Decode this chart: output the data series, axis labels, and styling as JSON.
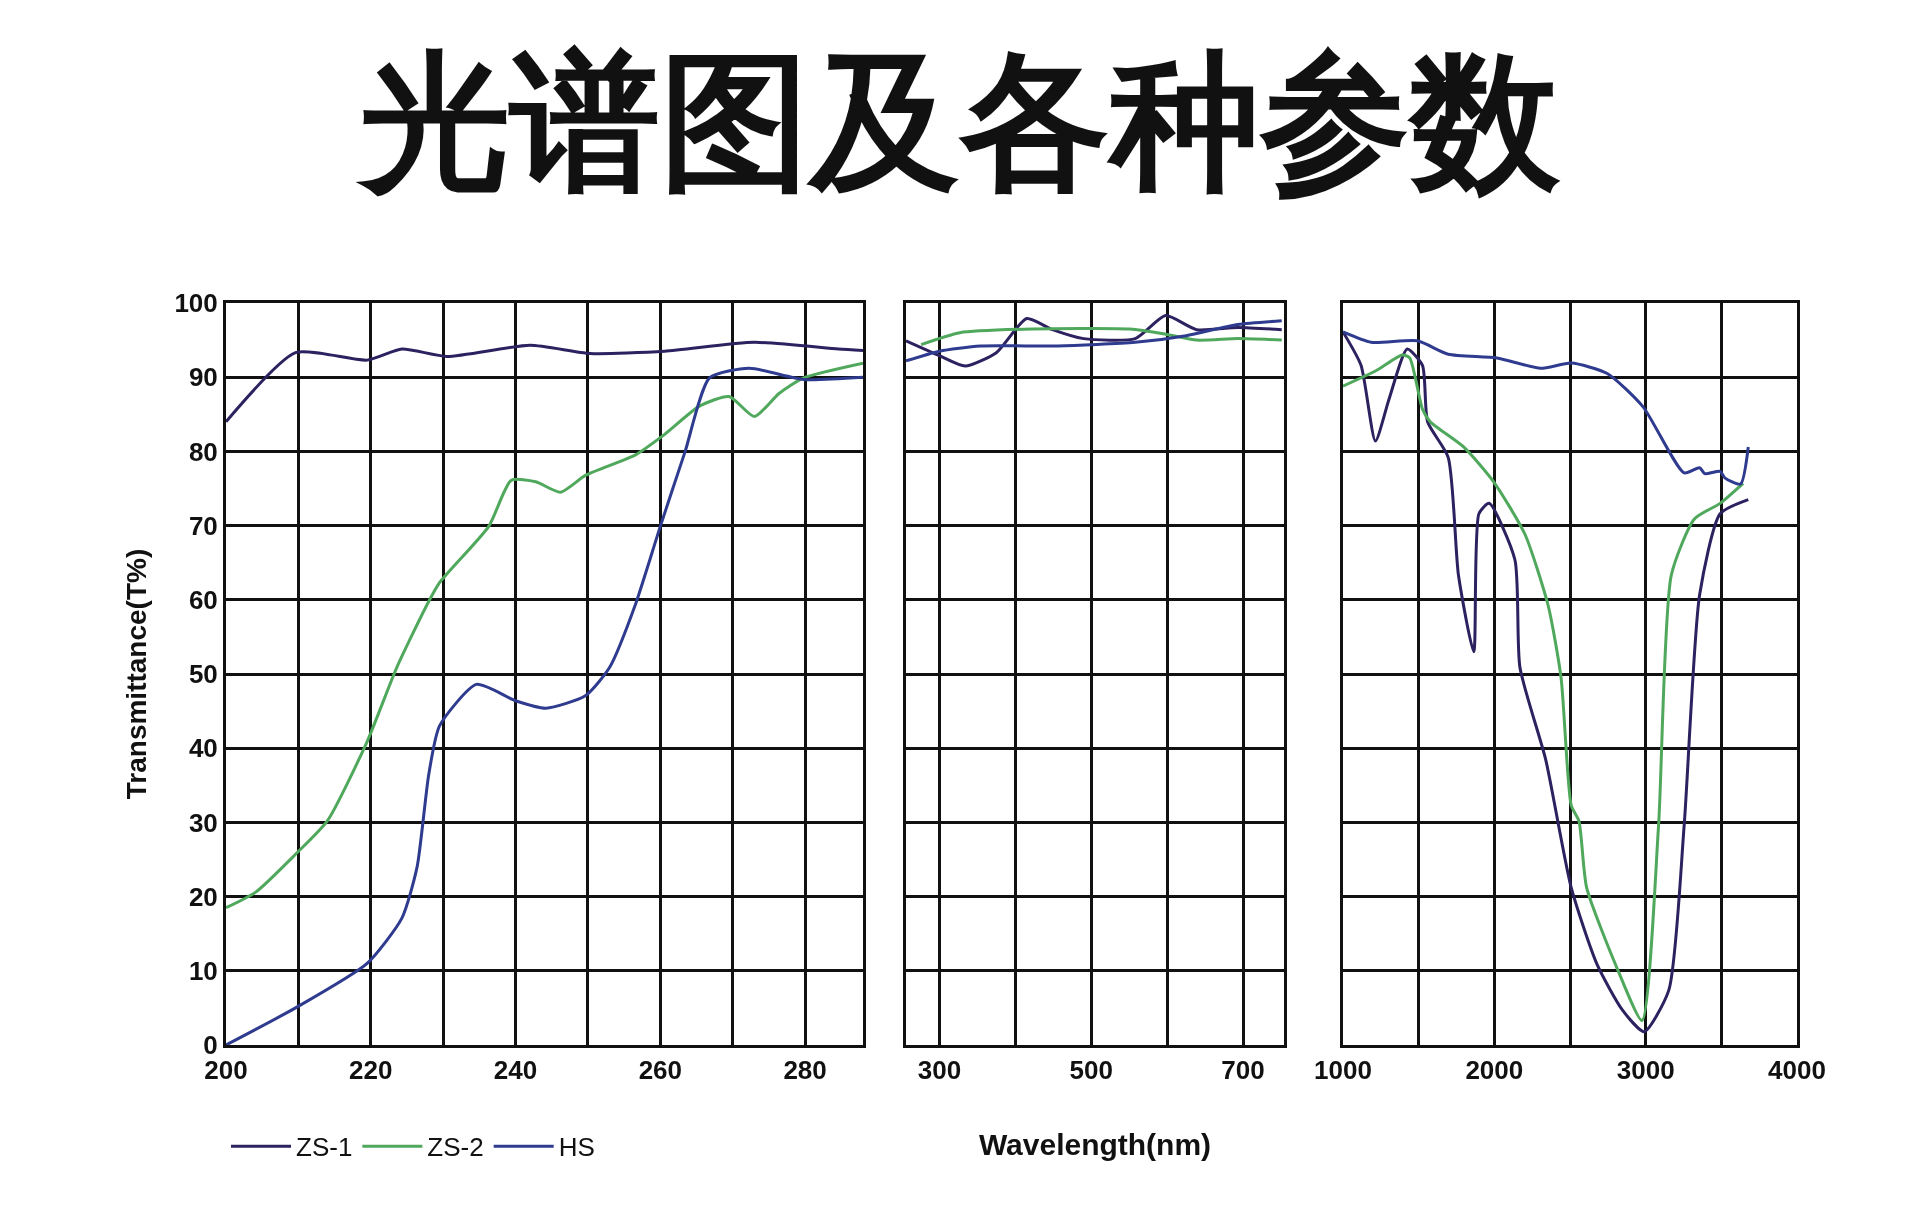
{
  "chart_data": [
    {
      "type": "line",
      "title": "光谱图及各种参数",
      "ylabel": "Transmittance(T%)",
      "legend": "bottom",
      "grid": true,
      "xlim": [
        200,
        288
      ],
      "xticks": [
        200,
        {
          "value": 210,
          "label": null
        },
        220,
        {
          "value": 230,
          "label": null
        },
        240,
        {
          "value": 250,
          "label": null
        },
        260,
        {
          "value": 270,
          "label": null
        },
        280
      ],
      "ylim": [
        0,
        100
      ],
      "yticks": [
        0,
        10,
        20,
        30,
        40,
        50,
        60,
        70,
        80,
        90,
        100
      ],
      "series": [
        {
          "name": "ZS-1",
          "color": "#2d2160",
          "x": [
            200,
            209.6,
            219.5,
            224.3,
            230.5,
            242,
            250.3,
            260.6,
            273,
            284.6,
            288
          ],
          "values": [
            84,
            93.3,
            92.3,
            93.8,
            92.8,
            94.3,
            93.2,
            93.5,
            94.7,
            93.8,
            93.6
          ]
        },
        {
          "name": "ZS-2",
          "color": "#4fa85c",
          "x": [
            200,
            204.1,
            209.6,
            214,
            219.5,
            223.6,
            227.7,
            229.5,
            236.3,
            239.4,
            242.8,
            246.2,
            249.7,
            256.5,
            260.6,
            265.4,
            269.5,
            273,
            276.4,
            279.8,
            288
          ],
          "values": [
            18.5,
            20.6,
            25.7,
            30.2,
            40.9,
            50.9,
            59.2,
            62.3,
            69.9,
            76.1,
            75.9,
            74.5,
            76.8,
            79.5,
            82.3,
            86.1,
            87.4,
            84.7,
            87.8,
            89.9,
            91.9
          ]
        },
        {
          "name": "HS",
          "color": "#2e3b8f",
          "x": [
            200,
            209.6,
            219.5,
            224.3,
            226.4,
            228,
            229.5,
            234.6,
            240,
            244.2,
            249.7,
            253,
            256.5,
            260,
            263.4,
            266.8,
            272.3,
            279.8,
            288
          ],
          "values": [
            0,
            5,
            11,
            17.1,
            24,
            36.4,
            43,
            48.6,
            46.4,
            45.4,
            47.1,
            50.9,
            59.2,
            69.9,
            79.9,
            89.9,
            91.2,
            89.7,
            90
          ]
        }
      ]
    },
    {
      "type": "line",
      "xlabel": "Wavelength(nm)",
      "grid": true,
      "tick_labels": "x",
      "xlim": [
        256,
        754
      ],
      "xticks": [
        300,
        {
          "value": 400,
          "label": null
        },
        500,
        {
          "value": 600,
          "label": null
        },
        700
      ],
      "ylim": [
        0,
        100
      ],
      "yticks": [
        {
          "value": 0,
          "label": null
        },
        {
          "value": 10,
          "label": null
        },
        {
          "value": 20,
          "label": null
        },
        {
          "value": 30,
          "label": null
        },
        {
          "value": 40,
          "label": null
        },
        {
          "value": 50,
          "label": null
        },
        {
          "value": 60,
          "label": null
        },
        {
          "value": 70,
          "label": null
        },
        {
          "value": 80,
          "label": null
        },
        {
          "value": 90,
          "label": null
        },
        {
          "value": 100,
          "label": null
        }
      ],
      "series": [
        {
          "color": "#2d2160",
          "x": [
            256,
            300,
            334,
            375,
            415,
            449,
            490,
            558,
            598,
            639,
            693,
            751
          ],
          "values": [
            94.9,
            92.9,
            91.5,
            93.3,
            97.9,
            96.4,
            95.2,
            95.2,
            98.3,
            96.4,
            96.7,
            96.4
          ]
        },
        {
          "color": "#4fa85c",
          "x": [
            276,
            327,
            422,
            551,
            598,
            639,
            693,
            751
          ],
          "values": [
            94.4,
            96,
            96.5,
            96.5,
            95.8,
            95,
            95.2,
            95
          ]
        },
        {
          "color": "#2e3b8f",
          "x": [
            256,
            300,
            354,
            456,
            558,
            625,
            693,
            751
          ],
          "values": [
            92.2,
            93.5,
            94.2,
            94.2,
            94.7,
            95.6,
            97.1,
            97.6
          ]
        }
      ]
    },
    {
      "type": "line",
      "grid": true,
      "tick_labels": "x",
      "xlim": [
        1000,
        4000
      ],
      "xticks": [
        1000,
        {
          "value": 1500,
          "label": null
        },
        2000,
        {
          "value": 2500,
          "label": null
        },
        3000,
        {
          "value": 3500,
          "label": null
        },
        4000
      ],
      "ylim": [
        0,
        100
      ],
      "yticks": [
        {
          "value": 0,
          "label": null
        },
        {
          "value": 10,
          "label": null
        },
        {
          "value": 20,
          "label": null
        },
        {
          "value": 30,
          "label": null
        },
        {
          "value": 40,
          "label": null
        },
        {
          "value": 50,
          "label": null
        },
        {
          "value": 60,
          "label": null
        },
        {
          "value": 70,
          "label": null
        },
        {
          "value": 80,
          "label": null
        },
        {
          "value": 90,
          "label": null
        },
        {
          "value": 100,
          "label": null
        }
      ],
      "series": [
        {
          "color": "#2d2160",
          "x": [
            1000,
            1119,
            1214,
            1305,
            1424,
            1525,
            1559,
            1695,
            1763,
            1864,
            1898,
            1966,
            2136,
            2169,
            2339,
            2508,
            2678,
            2847,
            2990,
            3153,
            3254,
            3356,
            3492,
            3678
          ],
          "values": [
            96.1,
            91.6,
            81.4,
            87.1,
            93.8,
            91.6,
            84,
            79.2,
            63.3,
            53,
            71.6,
            73,
            65.4,
            50.9,
            38.5,
            21.2,
            10.9,
            4.7,
            1.8,
            7.4,
            29.5,
            60.6,
            71.6,
            73.5
          ]
        },
        {
          "color": "#4fa85c",
          "x": [
            1000,
            1220,
            1390,
            1441,
            1525,
            1576,
            1797,
            1999,
            2203,
            2356,
            2441,
            2508,
            2559,
            2610,
            2814,
            2976,
            3085,
            3169,
            3322,
            3492,
            3644
          ],
          "values": [
            88.8,
            90.9,
            93,
            92.6,
            85.7,
            84,
            80.6,
            75.8,
            68.8,
            59.2,
            49.5,
            32.3,
            30.2,
            21.2,
            10.2,
            3.3,
            29.5,
            63.3,
            70.9,
            73,
            75.7
          ]
        },
        {
          "color": "#2e3b8f",
          "x": [
            1000,
            1186,
            1492,
            1695,
            2017,
            2305,
            2508,
            2746,
            2983,
            3254,
            3356,
            3390,
            3492,
            3525,
            3627,
            3678
          ],
          "values": [
            96.1,
            94.7,
            94.9,
            93.1,
            92.6,
            91.2,
            91.9,
            90.5,
            86,
            77.1,
            77.8,
            77,
            77.3,
            76.4,
            75.6,
            80.6
          ]
        }
      ]
    }
  ]
}
